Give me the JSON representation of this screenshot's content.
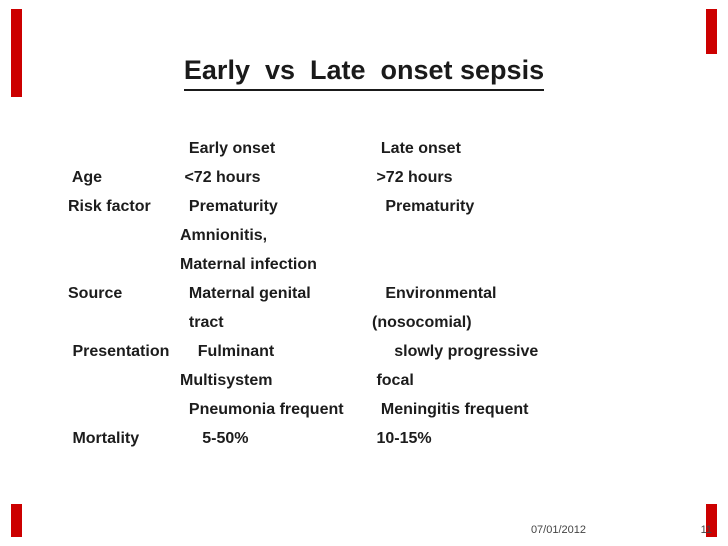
{
  "slide": {
    "title": "Early  vs  Late  onset sepsis"
  },
  "table": {
    "header": {
      "early": "Early onset",
      "late": "Late onset"
    },
    "rows": [
      {
        "label": "",
        "early": "  Early onset",
        "late": "  Late onset"
      },
      {
        "label": " Age",
        "early": " <72 hours",
        "late": " >72 hours"
      },
      {
        "label": "Risk factor",
        "early": "  Prematurity",
        "late": "   Prematurity"
      },
      {
        "label": "",
        "early": "Amnionitis,",
        "late": ""
      },
      {
        "label": "",
        "early": "Maternal infection",
        "late": ""
      },
      {
        "label": "Source",
        "early": "  Maternal genital",
        "late": "   Environmental"
      },
      {
        "label": "",
        "early": "  tract",
        "late": "(nosocomial)"
      },
      {
        "label": " Presentation",
        "early": "    Fulminant",
        "late": "     slowly progressive"
      },
      {
        "label": "",
        "early": "Multisystem",
        "late": " focal"
      },
      {
        "label": "",
        "early": "  Pneumonia frequent",
        "late": "  Meningitis frequent"
      },
      {
        "label": " Mortality",
        "early": "     5-50%",
        "late": " 10-15%"
      }
    ]
  },
  "footer": {
    "date": "07/01/2012",
    "page": "11"
  },
  "colors": {
    "accent": "#cc0000",
    "text": "#1c1c1c"
  }
}
